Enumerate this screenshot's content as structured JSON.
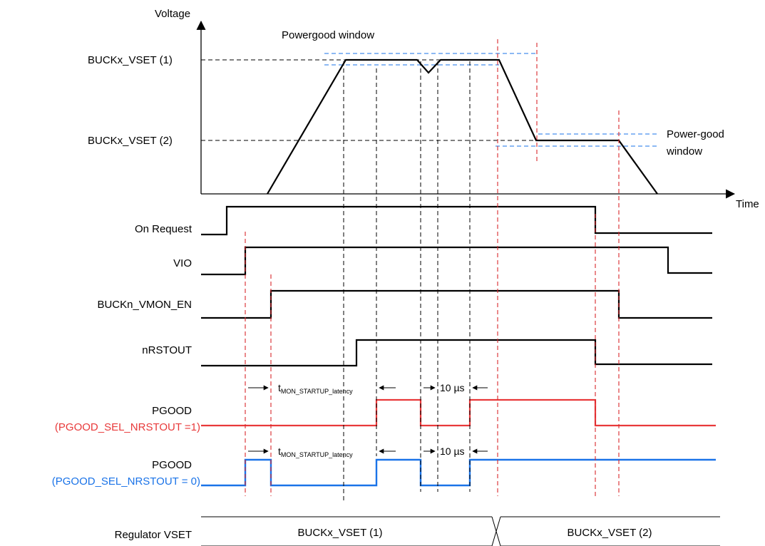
{
  "axes": {
    "y_label": "Voltage",
    "x_label": "Time"
  },
  "voltage_plot": {
    "vset1_label": "BUCKx_VSET (1)",
    "vset2_label": "BUCKx_VSET (2)",
    "pg_window_top_label": "Powergood window",
    "pg_window_right_label_line1": "Power-good",
    "pg_window_right_label_line2": "window"
  },
  "signals": {
    "on_request": "On Request",
    "vio": "VIO",
    "vmon_en": "BUCKn_VMON_EN",
    "nrstout": "nRSTOUT",
    "pgood_red_line1": "PGOOD",
    "pgood_red_line2": "(PGOOD_SEL_NRSTOUT =1)",
    "pgood_blue_line1": "PGOOD",
    "pgood_blue_line2": "(PGOOD_SEL_NRSTOUT = 0)",
    "regulator_vset": "Regulator VSET"
  },
  "timing": {
    "t_main": "t",
    "t_sub": "MON_STARTUP_latency",
    "delay_10us": "10 µs"
  },
  "regulator_bus": {
    "segment1": "BUCKx_VSET (1)",
    "segment2": "BUCKx_VSET (2)"
  },
  "colors": {
    "red_trace": "#e8393a",
    "blue_trace": "#1a73e8"
  }
}
